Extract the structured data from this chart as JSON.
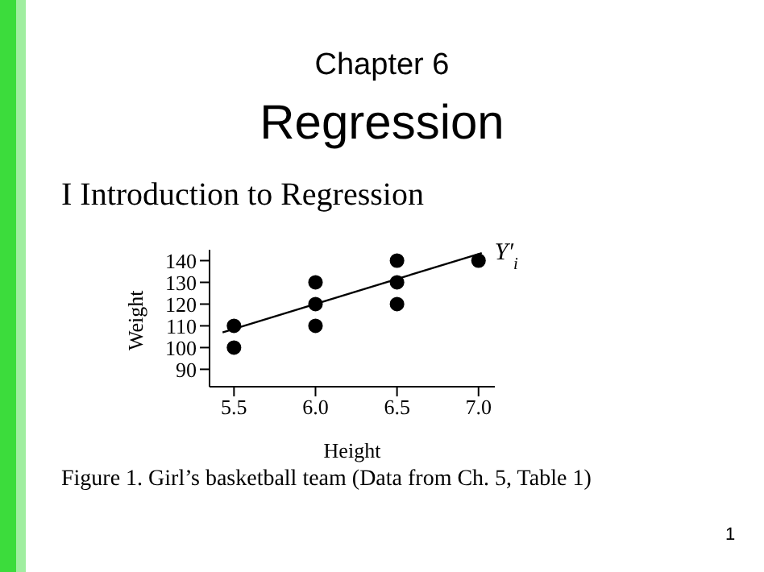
{
  "chart_data": {
    "type": "scatter",
    "title": "Chapter 6",
    "subtitle": "Regression",
    "xlabel": "Height",
    "ylabel": "Weight",
    "annotations": [
      "I   Introduction to Regression",
      "Figure 1. Girl’s basketball team (Data from Ch. 5, Table 1)",
      "1"
    ],
    "series": [
      {
        "color": "#000000",
        "x": [
          5.5,
          5.5,
          6.0,
          6.0,
          6.0,
          6.5,
          6.5,
          6.5,
          7.0
        ],
        "values": [
          110,
          100,
          130,
          120,
          110,
          140,
          130,
          120,
          140
        ]
      },
      {
        "type": "line",
        "name": "Y′$_{i}$",
        "marker": "none",
        "color": "#000000",
        "x": [
          5.43,
          7.02
        ],
        "values": [
          107,
          143.5
        ]
      }
    ],
    "xlim": [
      5.35,
      7.1
    ],
    "xticks": [
      5.5,
      {
        "value": 6,
        "label": "6.0"
      },
      6.5,
      {
        "value": 7,
        "label": "7.0"
      }
    ],
    "ylim": [
      82,
      145
    ],
    "yticks": [
      90,
      100,
      110,
      120,
      130,
      140
    ],
    "grid": false,
    "legend": false,
    "marker": "circle"
  }
}
